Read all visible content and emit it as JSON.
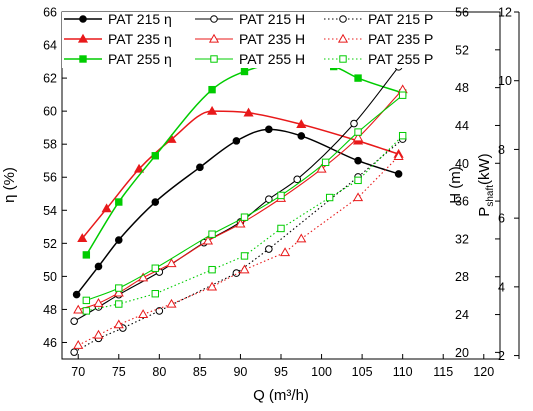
{
  "chart_data": {
    "type": "line",
    "title": "",
    "xlabel": "Q (m³/h)",
    "x_ticks": [
      70,
      75,
      80,
      85,
      90,
      95,
      100,
      105,
      110,
      115,
      120
    ],
    "xlim": [
      68,
      122
    ],
    "axes": {
      "eta": {
        "label": "η (%)",
        "ticks": [
          46,
          48,
          50,
          52,
          54,
          56,
          58,
          60,
          62,
          64,
          66
        ],
        "lim": [
          45,
          66
        ]
      },
      "H": {
        "label": "H (m)",
        "ticks": [
          20,
          24,
          28,
          32,
          36,
          40,
          44,
          48,
          52,
          56
        ],
        "lim": [
          19.3,
          56
        ]
      },
      "P": {
        "label": "P",
        "label_sub": "shaft",
        "label_unit": "(kW)",
        "ticks": [
          2,
          4,
          6,
          8,
          10,
          12
        ],
        "lim": [
          1.9,
          12
        ]
      }
    },
    "grid": false,
    "legend_placement": "top",
    "series": [
      {
        "name": "PAT 215 η",
        "axis": "eta",
        "color": "#000000",
        "marker": "circle-filled",
        "line": "solid",
        "x": [
          69.8,
          72.5,
          75.0,
          79.5,
          85.0,
          89.5,
          93.5,
          97.5,
          104.5,
          109.5
        ],
        "y": [
          48.9,
          50.6,
          52.2,
          54.5,
          56.6,
          58.2,
          58.9,
          58.5,
          57.0,
          56.2
        ]
      },
      {
        "name": "PAT 235 η",
        "axis": "eta",
        "color": "#e8191a",
        "marker": "triangle-filled",
        "line": "solid",
        "x": [
          70.5,
          73.5,
          77.5,
          81.5,
          86.5,
          91.0,
          97.5,
          104.5,
          109.5
        ],
        "y": [
          52.3,
          54.1,
          56.5,
          58.3,
          60.0,
          59.9,
          59.2,
          58.2,
          57.4
        ]
      },
      {
        "name": "PAT 255 η",
        "axis": "eta",
        "color": "#00cc00",
        "marker": "square-filled",
        "line": "solid",
        "x": [
          71.0,
          75.0,
          79.5,
          86.5,
          90.5,
          95.5,
          101.5,
          104.5,
          110.0
        ],
        "y": [
          51.3,
          54.5,
          57.3,
          61.3,
          62.4,
          62.9,
          62.7,
          62.0,
          61.1
        ]
      },
      {
        "name": "PAT 215 H",
        "axis": "H",
        "color": "#000000",
        "marker": "circle-open",
        "line": "solid",
        "x": [
          69.5,
          72.5,
          75.0,
          80.0,
          85.5,
          90.0,
          93.5,
          97.0,
          104.0,
          109.5
        ],
        "y": [
          23.3,
          24.8,
          26.1,
          28.5,
          31.6,
          33.8,
          36.2,
          38.3,
          44.2,
          50.2
        ]
      },
      {
        "name": "PAT 235 H",
        "axis": "H",
        "color": "#e8191a",
        "marker": "triangle-open",
        "line": "solid",
        "x": [
          70.0,
          72.5,
          75.0,
          78.0,
          81.5,
          86.0,
          90.0,
          95.0,
          100.0,
          104.5,
          110.0
        ],
        "y": [
          24.5,
          25.2,
          26.3,
          27.9,
          29.4,
          31.8,
          33.6,
          36.3,
          39.4,
          42.7,
          47.8
        ]
      },
      {
        "name": "PAT 255 H",
        "axis": "H",
        "color": "#00cc00",
        "marker": "square-open",
        "line": "solid",
        "x": [
          71.0,
          75.0,
          79.5,
          86.5,
          90.5,
          95.0,
          100.5,
          104.5,
          110.0
        ],
        "y": [
          25.5,
          26.8,
          28.9,
          32.5,
          34.3,
          36.6,
          40.1,
          43.3,
          47.2
        ]
      },
      {
        "name": "PAT 215 P",
        "axis": "P",
        "color": "#000000",
        "marker": "circle-open",
        "line": "dotted",
        "x": [
          69.5,
          72.5,
          75.5,
          80.0,
          89.5,
          93.5,
          104.5,
          110.0
        ],
        "y": [
          2.1,
          2.5,
          2.8,
          3.3,
          4.4,
          5.1,
          7.2,
          8.3
        ]
      },
      {
        "name": "PAT 235 P",
        "axis": "P",
        "color": "#e8191a",
        "marker": "triangle-open",
        "line": "dotted",
        "x": [
          70.0,
          72.5,
          75.0,
          78.0,
          81.5,
          86.5,
          90.5,
          95.5,
          97.5,
          104.5,
          109.5
        ],
        "y": [
          2.3,
          2.6,
          2.9,
          3.2,
          3.5,
          4.0,
          4.5,
          5.0,
          5.4,
          6.6,
          7.8
        ]
      },
      {
        "name": "PAT 255 P",
        "axis": "P",
        "color": "#00cc00",
        "marker": "square-open",
        "line": "dotted",
        "x": [
          71.0,
          75.0,
          79.5,
          86.5,
          90.5,
          95.0,
          101.0,
          104.5,
          110.0
        ],
        "y": [
          3.3,
          3.5,
          3.8,
          4.5,
          4.9,
          5.7,
          6.6,
          7.1,
          8.4
        ]
      }
    ]
  }
}
